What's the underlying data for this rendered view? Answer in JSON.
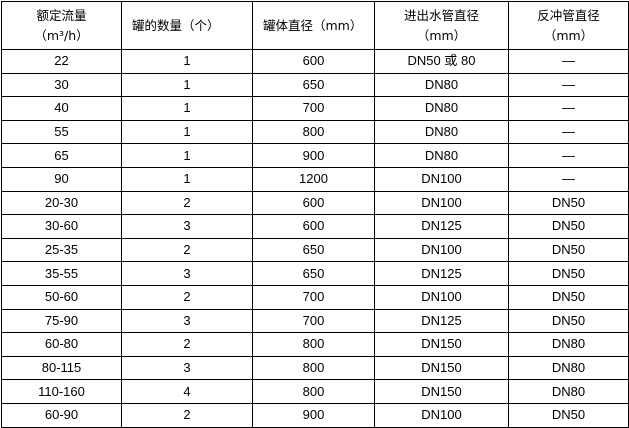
{
  "headers": [
    {
      "line1": "额定流量",
      "line2": "（m³/h）"
    },
    {
      "line1": "罐的数量（个）",
      "line2": ""
    },
    {
      "line1": "罐体直径（mm）",
      "line2": ""
    },
    {
      "line1": "进出水管直径",
      "line2": "（mm）"
    },
    {
      "line1": "反冲管直径",
      "line2": "（mm）"
    }
  ],
  "rows": [
    [
      "22",
      "1",
      "600",
      "DN50 或 80",
      "—"
    ],
    [
      "30",
      "1",
      "650",
      "DN80",
      "—"
    ],
    [
      "40",
      "1",
      "700",
      "DN80",
      "—"
    ],
    [
      "55",
      "1",
      "800",
      "DN80",
      "—"
    ],
    [
      "65",
      "1",
      "900",
      "DN80",
      "—"
    ],
    [
      "90",
      "1",
      "1200",
      "DN100",
      "—"
    ],
    [
      "20-30",
      "2",
      "600",
      "DN100",
      "DN50"
    ],
    [
      "30-60",
      "3",
      "600",
      "DN125",
      "DN50"
    ],
    [
      "25-35",
      "2",
      "650",
      "DN100",
      "DN50"
    ],
    [
      "35-55",
      "3",
      "650",
      "DN125",
      "DN50"
    ],
    [
      "50-60",
      "2",
      "700",
      "DN100",
      "DN50"
    ],
    [
      "75-90",
      "3",
      "700",
      "DN125",
      "DN50"
    ],
    [
      "60-80",
      "2",
      "800",
      "DN150",
      "DN80"
    ],
    [
      "80-115",
      "3",
      "800",
      "DN150",
      "DN80"
    ],
    [
      "110-160",
      "4",
      "800",
      "DN150",
      "DN80"
    ],
    [
      "60-90",
      "2",
      "900",
      "DN100",
      "DN50"
    ]
  ]
}
